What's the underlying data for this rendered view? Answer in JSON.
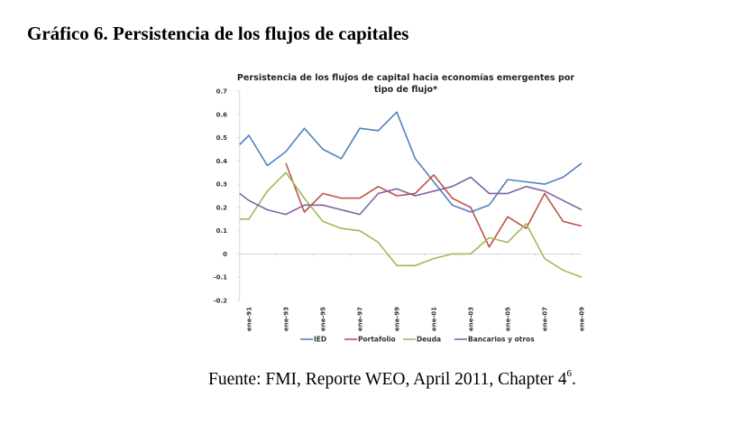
{
  "figure_title": "Gráfico 6. Persistencia de los flujos de capitales",
  "source": {
    "text": "Fuente: FMI, Reporte WEO, April 2011, Chapter 4",
    "footnote_mark": "6",
    "end": "."
  },
  "chart_data": {
    "type": "line",
    "title_line1": "Persistencia de los flujos de capital hacia economías emergentes por",
    "title_line2": "tipo de flujo*",
    "xlabel": "",
    "ylabel": "",
    "ylim": [
      -0.2,
      0.7
    ],
    "xlim": [
      1990.5,
      2009
    ],
    "y_ticks": [
      0.7,
      0.6,
      0.5,
      0.4,
      0.3,
      0.2,
      0.1,
      0,
      -0.1,
      -0.2
    ],
    "y_tick_labels": [
      "0.7",
      "0.6",
      "0.5",
      "0.4",
      "0.3",
      "0.2",
      "0.1",
      "0",
      "-0.1",
      "-0.2"
    ],
    "x_ticks": [
      1991,
      1993,
      1995,
      1997,
      1999,
      2001,
      2003,
      2005,
      2007,
      2009
    ],
    "x_tick_labels": [
      "ene-91",
      "ene-93",
      "ene-95",
      "ene-97",
      "ene-99",
      "ene-01",
      "ene-03",
      "ene-05",
      "ene-07",
      "ene-09"
    ],
    "grid": false,
    "legend_position": "bottom",
    "series": [
      {
        "name": "IED",
        "color": "#4F81BD",
        "x": [
          1990.5,
          1991,
          1992,
          1993,
          1994,
          1995,
          1996,
          1997,
          1998,
          1999,
          2000,
          2001,
          2002,
          2003,
          2004,
          2005,
          2006,
          2007,
          2008,
          2009
        ],
        "values": [
          0.47,
          0.51,
          0.38,
          0.44,
          0.54,
          0.45,
          0.41,
          0.54,
          0.53,
          0.61,
          0.41,
          0.31,
          0.21,
          0.18,
          0.21,
          0.32,
          0.31,
          0.3,
          0.33,
          0.39
        ]
      },
      {
        "name": "Portafolio",
        "color": "#C0504D",
        "x": [
          1993,
          1994,
          1995,
          1996,
          1997,
          1998,
          1999,
          2000,
          2001,
          2002,
          2003,
          2004,
          2005,
          2006,
          2007,
          2008,
          2009
        ],
        "values": [
          0.39,
          0.18,
          0.26,
          0.24,
          0.24,
          0.29,
          0.25,
          0.26,
          0.34,
          0.24,
          0.2,
          0.03,
          0.16,
          0.11,
          0.26,
          0.14,
          0.12
        ]
      },
      {
        "name": "Deuda",
        "color": "#9BBB59",
        "x": [
          1990.5,
          1991,
          1992,
          1993,
          1994,
          1995,
          1996,
          1997,
          1998,
          1999,
          2000,
          2001,
          2002,
          2003,
          2004,
          2005,
          2006,
          2007,
          2008,
          2009
        ],
        "values": [
          0.15,
          0.15,
          0.27,
          0.35,
          0.24,
          0.14,
          0.11,
          0.1,
          0.05,
          -0.05,
          -0.05,
          -0.02,
          0.0,
          0.0,
          0.07,
          0.05,
          0.13,
          -0.02,
          -0.07,
          -0.1
        ]
      },
      {
        "name": "Bancarios y otros",
        "color": "#8064A2",
        "x": [
          1990.5,
          1991,
          1992,
          1993,
          1994,
          1995,
          1996,
          1997,
          1998,
          1999,
          2000,
          2001,
          2002,
          2003,
          2004,
          2005,
          2006,
          2007,
          2008,
          2009
        ],
        "values": [
          0.26,
          0.23,
          0.19,
          0.17,
          0.21,
          0.21,
          0.19,
          0.17,
          0.26,
          0.28,
          0.25,
          0.27,
          0.29,
          0.33,
          0.26,
          0.26,
          0.29,
          0.27,
          0.23,
          0.19
        ]
      }
    ]
  }
}
